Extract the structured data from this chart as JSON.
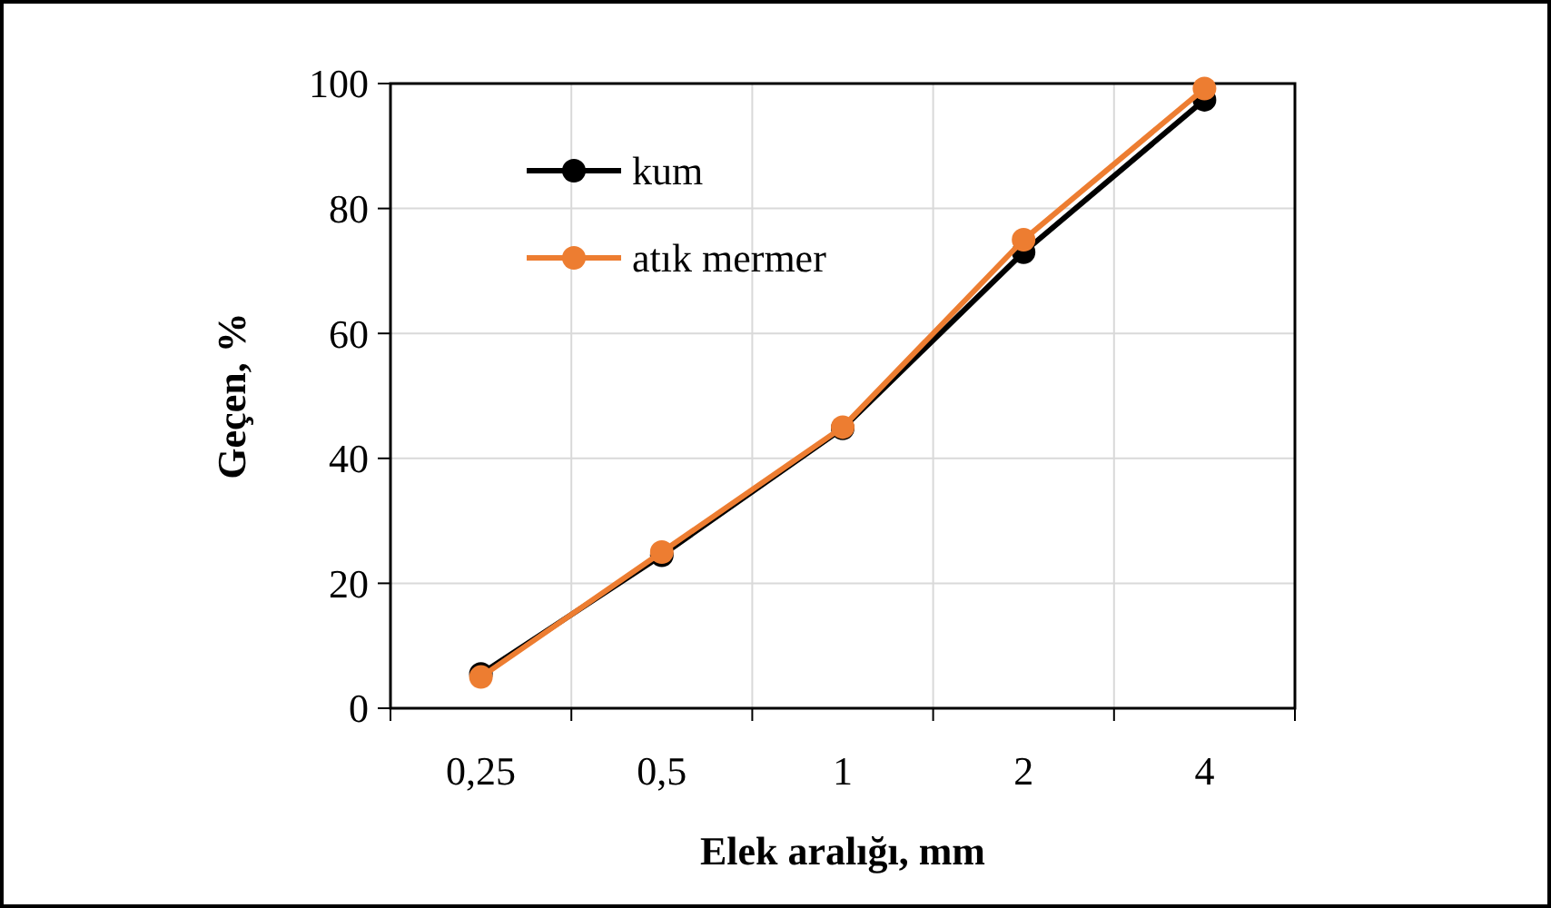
{
  "chart_data": {
    "type": "line",
    "xlabel": "Elek aralığı, mm",
    "ylabel": "Geçen, %",
    "categories": [
      "0,25",
      "0,5",
      "1",
      "2",
      "4"
    ],
    "series": [
      {
        "name": "kum",
        "color": "#000000",
        "values": [
          5.5,
          24.5,
          44.8,
          73,
          97.4
        ]
      },
      {
        "name": "atık mermer",
        "color": "#ed7d31",
        "values": [
          5,
          25,
          45,
          75,
          99.2
        ]
      }
    ],
    "ylim": [
      0,
      100
    ],
    "yticks": [
      0,
      20,
      40,
      60,
      80,
      100
    ],
    "grid": true,
    "legend": "top left",
    "marker": "circle",
    "line_style": "solid"
  }
}
